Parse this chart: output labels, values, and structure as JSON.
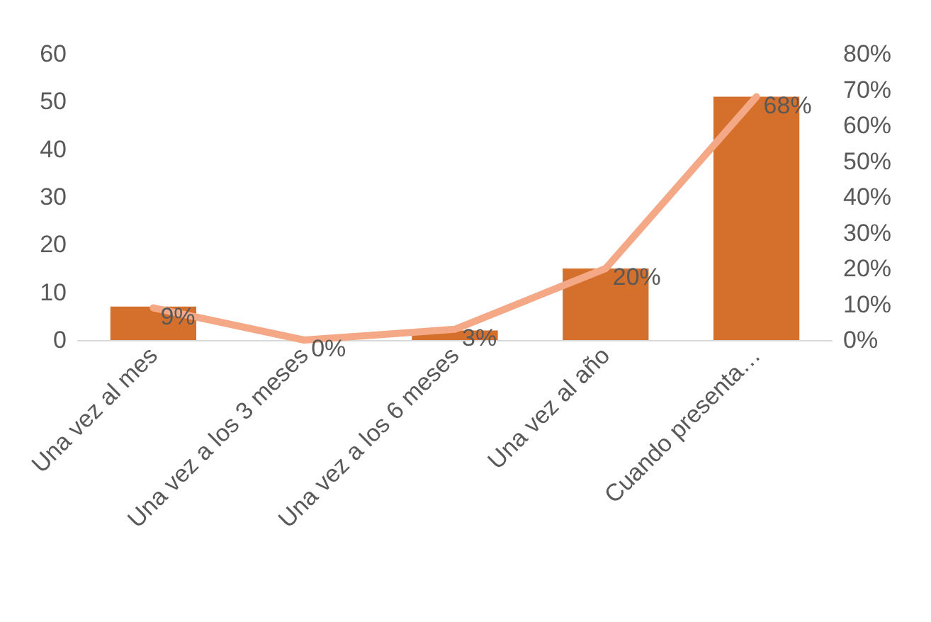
{
  "chart_data": {
    "type": "bar",
    "categories": [
      "Una vez al mes",
      "Una vez a los 3 meses",
      "Una vez a los 6 meses",
      "Una vez al año",
      "Cuando presenta…"
    ],
    "series": [
      {
        "color": "#d4702c",
        "values": [
          7,
          0,
          2,
          15,
          51
        ]
      },
      {
        "type": "line",
        "axis": "y2",
        "color": "#f4a886",
        "values": [
          9,
          0,
          3,
          20,
          68
        ],
        "value_labels": [
          "9%",
          "0%",
          "3%",
          "20%",
          "68%"
        ]
      }
    ],
    "ylim": [
      0,
      60
    ],
    "yticks": [
      0,
      10,
      20,
      30,
      40,
      50,
      60
    ],
    "y2lim": [
      0,
      80
    ],
    "y2ticks": [
      {
        "value": 0,
        "label": "0%"
      },
      {
        "value": 10,
        "label": "10%"
      },
      {
        "value": 20,
        "label": "20%"
      },
      {
        "value": 30,
        "label": "30%"
      },
      {
        "value": 40,
        "label": "40%"
      },
      {
        "value": 50,
        "label": "50%"
      },
      {
        "value": 60,
        "label": "60%"
      },
      {
        "value": 70,
        "label": "70%"
      },
      {
        "value": 80,
        "label": "80%"
      }
    ],
    "grid": false,
    "marker": "none",
    "line_style": "solid"
  }
}
